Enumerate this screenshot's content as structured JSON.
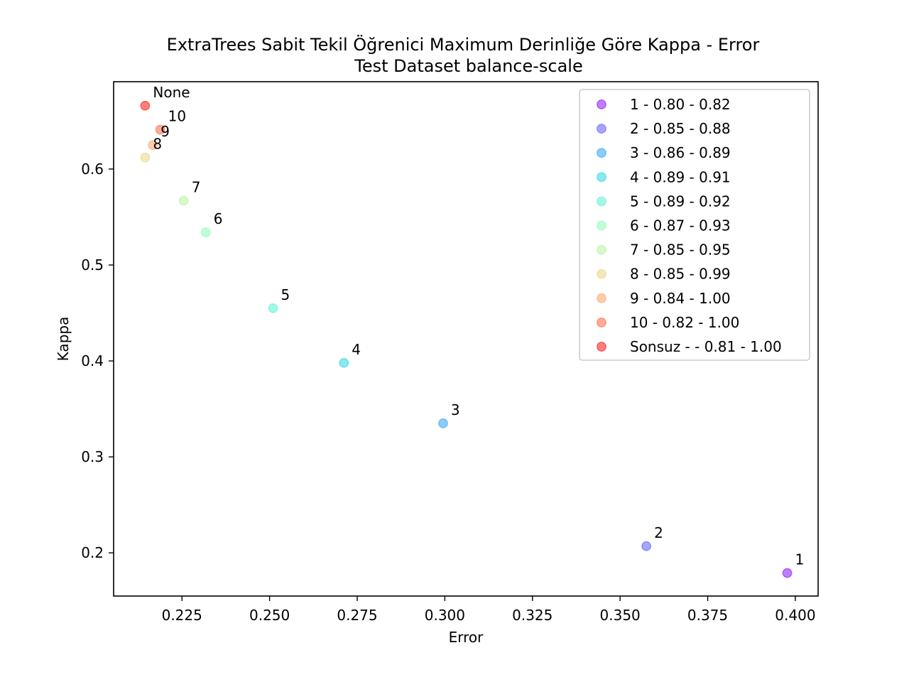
{
  "chart_data": {
    "type": "scatter",
    "title": "ExtraTrees Sabit Tekil Öğrenici Maximum Derinliğe Göre Kappa - Error",
    "subtitle": "Test Dataset  balance-scale",
    "xlabel": "Error",
    "ylabel": "Kappa",
    "xlim": [
      0.2055,
      0.4065
    ],
    "ylim": [
      0.155,
      0.691
    ],
    "xticks": [
      "0.225",
      "0.250",
      "0.275",
      "0.300",
      "0.325",
      "0.350",
      "0.375",
      "0.400"
    ],
    "xtick_values": [
      0.225,
      0.25,
      0.275,
      0.3,
      0.325,
      0.35,
      0.375,
      0.4
    ],
    "yticks": [
      "0.2",
      "0.3",
      "0.4",
      "0.5",
      "0.6"
    ],
    "ytick_values": [
      0.2,
      0.3,
      0.4,
      0.5,
      0.6
    ],
    "grid": false,
    "legend_position": "top-right",
    "points": [
      {
        "label": "1",
        "x": 0.3977,
        "y": 0.179,
        "color": "#8000ff",
        "legend": "1 - 0.80 - 0.82"
      },
      {
        "label": "2",
        "x": 0.3575,
        "y": 0.207,
        "color": "#4f4dfd",
        "legend": "2 - 0.85 - 0.88"
      },
      {
        "label": "3",
        "x": 0.2995,
        "y": 0.335,
        "color": "#1a9bef",
        "legend": "3 - 0.86 - 0.89"
      },
      {
        "label": "4",
        "x": 0.2712,
        "y": 0.398,
        "color": "#19d3e0",
        "legend": "4 - 0.89 - 0.91"
      },
      {
        "label": "5",
        "x": 0.251,
        "y": 0.455,
        "color": "#4cf2ce",
        "legend": "5 - 0.89 - 0.92"
      },
      {
        "label": "6",
        "x": 0.2318,
        "y": 0.534,
        "color": "#80feb3",
        "legend": "6 - 0.87 - 0.93"
      },
      {
        "label": "7",
        "x": 0.2255,
        "y": 0.567,
        "color": "#b3f297",
        "legend": "7 - 0.85 - 0.95"
      },
      {
        "label": "8",
        "x": 0.2145,
        "y": 0.612,
        "color": "#e6d478",
        "legend": "8 - 0.85 - 0.99"
      },
      {
        "label": "9",
        "x": 0.2167,
        "y": 0.625,
        "color": "#ff9b59",
        "legend": "9 - 0.84 - 1.00"
      },
      {
        "label": "10",
        "x": 0.2188,
        "y": 0.641,
        "color": "#ff5a33",
        "legend": "10 - 0.82 - 1.00"
      },
      {
        "label": "None",
        "x": 0.2145,
        "y": 0.666,
        "color": "#ff0000",
        "legend": "Sonsuz -  - 0.81 - 1.00"
      }
    ]
  }
}
